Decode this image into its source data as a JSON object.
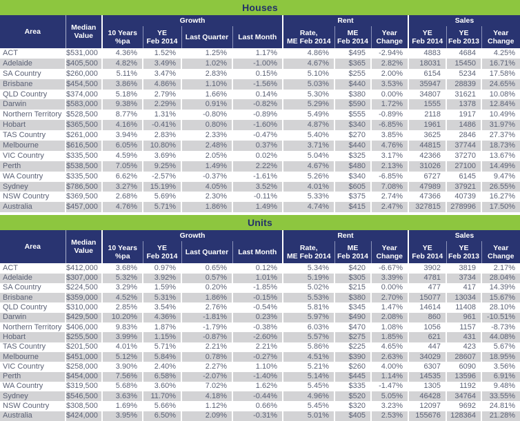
{
  "colors": {
    "accent_green": "#8dc63f",
    "header_navy": "#293471",
    "stripe_gray": "#d3d3d5",
    "text_slate": "#5b6175",
    "header_text": "#ffffff",
    "title_text": "#233168"
  },
  "header": {
    "area": "Area",
    "median_value": "Median\nValue",
    "groups": {
      "growth": "Growth",
      "rent": "Rent",
      "sales": "Sales"
    },
    "sub": {
      "growth_10y": "10 Years\n%pa",
      "growth_ye2014": "YE\nFeb 2014",
      "growth_last_quarter": "Last Quarter",
      "growth_last_month": "Last Month",
      "rent_rate": "Rate,\nME Feb 2014",
      "rent_me": "ME\nFeb 2014",
      "rent_year_change": "Year\nChange",
      "sales_ye2014": "YE\nFeb 2014",
      "sales_ye2013": "YE\nFeb 2013",
      "sales_year_change": "Year\nChange"
    }
  },
  "tables": [
    {
      "title": "Houses",
      "rows": [
        [
          "ACT",
          "$531,000",
          "4.36%",
          "1.52%",
          "1.25%",
          "1.17%",
          "4.86%",
          "$495",
          "-2.94%",
          "4883",
          "4684",
          "4.25%"
        ],
        [
          "Adelaide",
          "$405,500",
          "4.82%",
          "3.49%",
          "1.02%",
          "-1.00%",
          "4.67%",
          "$365",
          "2.82%",
          "18031",
          "15450",
          "16.71%"
        ],
        [
          "SA Country",
          "$260,000",
          "5.11%",
          "3.47%",
          "2.83%",
          "0.15%",
          "5.10%",
          "$255",
          "2.00%",
          "6154",
          "5234",
          "17.58%"
        ],
        [
          "Brisbane",
          "$454,500",
          "3.86%",
          "4.86%",
          "1.10%",
          "-1.56%",
          "5.03%",
          "$440",
          "3.53%",
          "35947",
          "28839",
          "24.65%"
        ],
        [
          "QLD Country",
          "$374,000",
          "5.18%",
          "2.79%",
          "1.66%",
          "0.14%",
          "5.30%",
          "$380",
          "0.00%",
          "34807",
          "31621",
          "10.08%"
        ],
        [
          "Darwin",
          "$583,000",
          "9.38%",
          "2.29%",
          "0.91%",
          "-0.82%",
          "5.29%",
          "$590",
          "1.72%",
          "1555",
          "1378",
          "12.84%"
        ],
        [
          "Northern Territory",
          "$528,500",
          "8.77%",
          "1.31%",
          "-0.80%",
          "-0.89%",
          "5.49%",
          "$555",
          "-0.89%",
          "2118",
          "1917",
          "10.49%"
        ],
        [
          "Hobart",
          "$365,500",
          "4.16%",
          "-0.41%",
          "0.80%",
          "-1.60%",
          "4.87%",
          "$340",
          "-6.85%",
          "1961",
          "1486",
          "31.97%"
        ],
        [
          "TAS Country",
          "$261,000",
          "3.94%",
          "2.83%",
          "2.33%",
          "-0.47%",
          "5.40%",
          "$270",
          "3.85%",
          "3625",
          "2846",
          "27.37%"
        ],
        [
          "Melbourne",
          "$616,500",
          "6.05%",
          "10.80%",
          "2.48%",
          "0.37%",
          "3.71%",
          "$440",
          "4.76%",
          "44815",
          "37744",
          "18.73%"
        ],
        [
          "VIC Country",
          "$335,500",
          "4.59%",
          "3.69%",
          "2.05%",
          "0.02%",
          "5.04%",
          "$325",
          "3.17%",
          "42366",
          "37270",
          "13.67%"
        ],
        [
          "Perth",
          "$538,500",
          "7.05%",
          "9.25%",
          "1.49%",
          "2.22%",
          "4.67%",
          "$480",
          "2.13%",
          "31026",
          "27100",
          "14.49%"
        ],
        [
          "WA Country",
          "$335,500",
          "6.62%",
          "-2.57%",
          "-0.37%",
          "-1.61%",
          "5.26%",
          "$340",
          "-6.85%",
          "6727",
          "6145",
          "9.47%"
        ],
        [
          "Sydney",
          "$786,500",
          "3.27%",
          "15.19%",
          "4.05%",
          "3.52%",
          "4.01%",
          "$605",
          "7.08%",
          "47989",
          "37921",
          "26.55%"
        ],
        [
          "NSW Country",
          "$369,500",
          "2.68%",
          "5.69%",
          "2.30%",
          "-0.11%",
          "5.33%",
          "$375",
          "2.74%",
          "47366",
          "40739",
          "16.27%"
        ],
        [
          "Australia",
          "$457,000",
          "4.76%",
          "5.71%",
          "1.86%",
          "1.49%",
          "4.74%",
          "$415",
          "2.47%",
          "327815",
          "278996",
          "17.50%"
        ]
      ]
    },
    {
      "title": "Units",
      "rows": [
        [
          "ACT",
          "$412,000",
          "3.68%",
          "0.97%",
          "0.65%",
          "0.12%",
          "5.34%",
          "$420",
          "-6.67%",
          "3902",
          "3819",
          "2.17%"
        ],
        [
          "Adelaide",
          "$307,000",
          "5.32%",
          "3.92%",
          "0.57%",
          "1.01%",
          "5.19%",
          "$305",
          "3.39%",
          "4781",
          "3734",
          "28.04%"
        ],
        [
          "SA Country",
          "$224,500",
          "3.29%",
          "1.59%",
          "0.20%",
          "-1.85%",
          "5.02%",
          "$215",
          "0.00%",
          "477",
          "417",
          "14.39%"
        ],
        [
          "Brisbane",
          "$359,000",
          "4.52%",
          "5.31%",
          "1.86%",
          "-0.15%",
          "5.53%",
          "$380",
          "2.70%",
          "15077",
          "13034",
          "15.67%"
        ],
        [
          "QLD Country",
          "$310,000",
          "2.85%",
          "3.54%",
          "2.76%",
          "-0.54%",
          "5.81%",
          "$345",
          "1.47%",
          "14614",
          "11408",
          "28.10%"
        ],
        [
          "Darwin",
          "$429,500",
          "10.20%",
          "4.36%",
          "-1.81%",
          "0.23%",
          "5.97%",
          "$490",
          "2.08%",
          "860",
          "961",
          "-10.51%"
        ],
        [
          "Northern Territory",
          "$406,000",
          "9.83%",
          "1.87%",
          "-1.79%",
          "-0.38%",
          "6.03%",
          "$470",
          "1.08%",
          "1056",
          "1157",
          "-8.73%"
        ],
        [
          "Hobart",
          "$255,500",
          "3.99%",
          "1.15%",
          "-0.87%",
          "-2.60%",
          "5.57%",
          "$275",
          "1.85%",
          "621",
          "431",
          "44.08%"
        ],
        [
          "TAS Country",
          "$201,500",
          "4.01%",
          "5.71%",
          "2.21%",
          "2.21%",
          "5.86%",
          "$225",
          "4.65%",
          "447",
          "423",
          "5.67%"
        ],
        [
          "Melbourne",
          "$451,000",
          "5.12%",
          "5.84%",
          "0.78%",
          "-0.27%",
          "4.51%",
          "$390",
          "2.63%",
          "34029",
          "28607",
          "18.95%"
        ],
        [
          "VIC Country",
          "$258,000",
          "3.90%",
          "2.40%",
          "2.27%",
          "1.10%",
          "5.21%",
          "$260",
          "4.00%",
          "6307",
          "6090",
          "3.56%"
        ],
        [
          "Perth",
          "$454,000",
          "7.56%",
          "6.58%",
          "-2.07%",
          "-1.40%",
          "5.14%",
          "$445",
          "1.14%",
          "14535",
          "13596",
          "6.91%"
        ],
        [
          "WA Country",
          "$319,500",
          "5.68%",
          "3.60%",
          "7.02%",
          "1.62%",
          "5.45%",
          "$335",
          "-1.47%",
          "1305",
          "1192",
          "9.48%"
        ],
        [
          "Sydney",
          "$546,500",
          "3.63%",
          "11.70%",
          "4.18%",
          "-0.44%",
          "4.96%",
          "$520",
          "5.05%",
          "46428",
          "34764",
          "33.55%"
        ],
        [
          "NSW Country",
          "$308,500",
          "1.69%",
          "5.66%",
          "1.12%",
          "0.66%",
          "5.45%",
          "$320",
          "3.23%",
          "12097",
          "9692",
          "24.81%"
        ],
        [
          "Australia",
          "$424,000",
          "3.95%",
          "6.50%",
          "2.09%",
          "-0.31%",
          "5.01%",
          "$405",
          "2.53%",
          "155676",
          "128364",
          "21.28%"
        ]
      ]
    }
  ]
}
